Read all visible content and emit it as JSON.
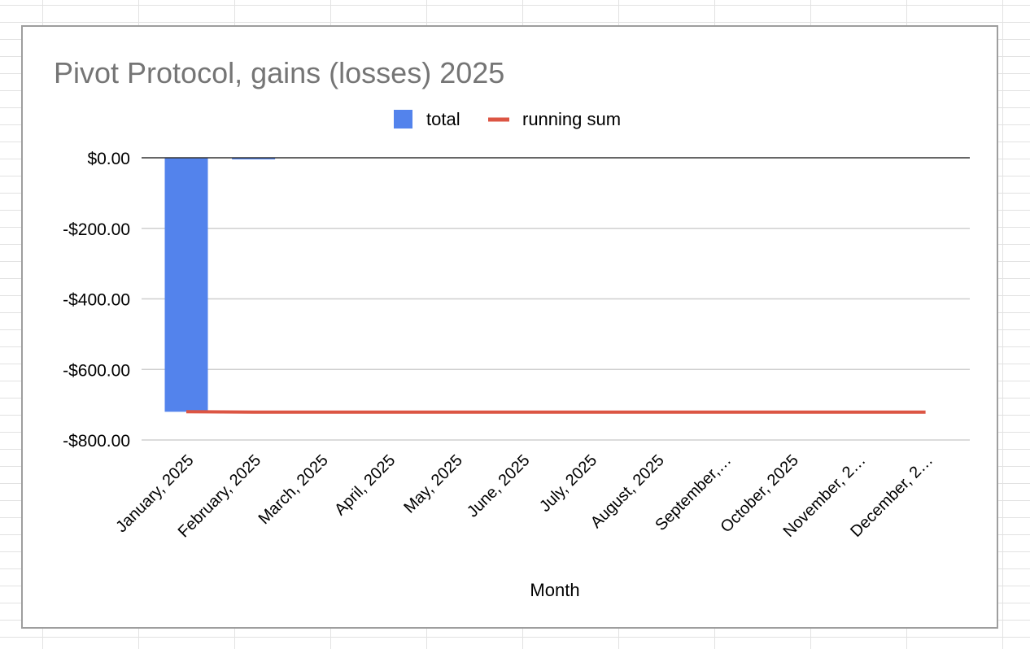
{
  "chart_data": {
    "type": "bar",
    "title": "Pivot Protocol, gains (losses) 2025",
    "xlabel": "Month",
    "ylabel": "",
    "categories": [
      "January, 2025",
      "February, 2025",
      "March, 2025",
      "April, 2025",
      "May, 2025",
      "June, 2025",
      "July, 2025",
      "August, 2025",
      "September,…",
      "October, 2025",
      "November, 2…",
      "December, 2…"
    ],
    "series": [
      {
        "name": "total",
        "type": "bar",
        "color": "#5383ec",
        "values": [
          -720,
          -1,
          null,
          null,
          null,
          null,
          null,
          null,
          null,
          null,
          null,
          null
        ]
      },
      {
        "name": "running sum",
        "type": "line",
        "color": "#dc5543",
        "values": [
          -720,
          -721,
          -721,
          -721,
          -721,
          -721,
          -721,
          -721,
          -721,
          -721,
          -721,
          -721
        ]
      }
    ],
    "ylim": [
      -800,
      0
    ],
    "yticks": [
      0,
      -200,
      -400,
      -600,
      -800
    ],
    "ytick_labels": [
      "$0.00",
      "-$200.00",
      "-$400.00",
      "-$600.00",
      "-$800.00"
    ],
    "grid": true,
    "legend_position": "top"
  }
}
